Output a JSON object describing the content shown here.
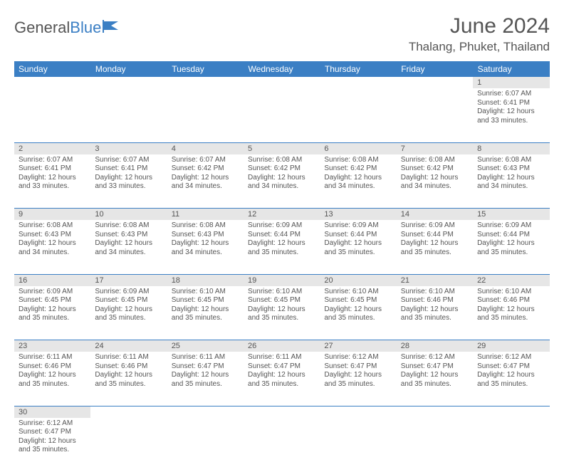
{
  "logo": {
    "text_general": "General",
    "text_blue": "Blue"
  },
  "title": "June 2024",
  "location": "Thalang, Phuket, Thailand",
  "colors": {
    "header_bg": "#3b7fc4",
    "header_text": "#ffffff",
    "daynum_bg": "#e6e6e6",
    "text": "#555555",
    "rule": "#3b7fc4"
  },
  "days_of_week": [
    "Sunday",
    "Monday",
    "Tuesday",
    "Wednesday",
    "Thursday",
    "Friday",
    "Saturday"
  ],
  "weeks": [
    [
      null,
      null,
      null,
      null,
      null,
      null,
      {
        "n": "1",
        "sr": "Sunrise: 6:07 AM",
        "ss": "Sunset: 6:41 PM",
        "dl": "Daylight: 12 hours and 33 minutes."
      }
    ],
    [
      {
        "n": "2",
        "sr": "Sunrise: 6:07 AM",
        "ss": "Sunset: 6:41 PM",
        "dl": "Daylight: 12 hours and 33 minutes."
      },
      {
        "n": "3",
        "sr": "Sunrise: 6:07 AM",
        "ss": "Sunset: 6:41 PM",
        "dl": "Daylight: 12 hours and 33 minutes."
      },
      {
        "n": "4",
        "sr": "Sunrise: 6:07 AM",
        "ss": "Sunset: 6:42 PM",
        "dl": "Daylight: 12 hours and 34 minutes."
      },
      {
        "n": "5",
        "sr": "Sunrise: 6:08 AM",
        "ss": "Sunset: 6:42 PM",
        "dl": "Daylight: 12 hours and 34 minutes."
      },
      {
        "n": "6",
        "sr": "Sunrise: 6:08 AM",
        "ss": "Sunset: 6:42 PM",
        "dl": "Daylight: 12 hours and 34 minutes."
      },
      {
        "n": "7",
        "sr": "Sunrise: 6:08 AM",
        "ss": "Sunset: 6:42 PM",
        "dl": "Daylight: 12 hours and 34 minutes."
      },
      {
        "n": "8",
        "sr": "Sunrise: 6:08 AM",
        "ss": "Sunset: 6:43 PM",
        "dl": "Daylight: 12 hours and 34 minutes."
      }
    ],
    [
      {
        "n": "9",
        "sr": "Sunrise: 6:08 AM",
        "ss": "Sunset: 6:43 PM",
        "dl": "Daylight: 12 hours and 34 minutes."
      },
      {
        "n": "10",
        "sr": "Sunrise: 6:08 AM",
        "ss": "Sunset: 6:43 PM",
        "dl": "Daylight: 12 hours and 34 minutes."
      },
      {
        "n": "11",
        "sr": "Sunrise: 6:08 AM",
        "ss": "Sunset: 6:43 PM",
        "dl": "Daylight: 12 hours and 34 minutes."
      },
      {
        "n": "12",
        "sr": "Sunrise: 6:09 AM",
        "ss": "Sunset: 6:44 PM",
        "dl": "Daylight: 12 hours and 35 minutes."
      },
      {
        "n": "13",
        "sr": "Sunrise: 6:09 AM",
        "ss": "Sunset: 6:44 PM",
        "dl": "Daylight: 12 hours and 35 minutes."
      },
      {
        "n": "14",
        "sr": "Sunrise: 6:09 AM",
        "ss": "Sunset: 6:44 PM",
        "dl": "Daylight: 12 hours and 35 minutes."
      },
      {
        "n": "15",
        "sr": "Sunrise: 6:09 AM",
        "ss": "Sunset: 6:44 PM",
        "dl": "Daylight: 12 hours and 35 minutes."
      }
    ],
    [
      {
        "n": "16",
        "sr": "Sunrise: 6:09 AM",
        "ss": "Sunset: 6:45 PM",
        "dl": "Daylight: 12 hours and 35 minutes."
      },
      {
        "n": "17",
        "sr": "Sunrise: 6:09 AM",
        "ss": "Sunset: 6:45 PM",
        "dl": "Daylight: 12 hours and 35 minutes."
      },
      {
        "n": "18",
        "sr": "Sunrise: 6:10 AM",
        "ss": "Sunset: 6:45 PM",
        "dl": "Daylight: 12 hours and 35 minutes."
      },
      {
        "n": "19",
        "sr": "Sunrise: 6:10 AM",
        "ss": "Sunset: 6:45 PM",
        "dl": "Daylight: 12 hours and 35 minutes."
      },
      {
        "n": "20",
        "sr": "Sunrise: 6:10 AM",
        "ss": "Sunset: 6:45 PM",
        "dl": "Daylight: 12 hours and 35 minutes."
      },
      {
        "n": "21",
        "sr": "Sunrise: 6:10 AM",
        "ss": "Sunset: 6:46 PM",
        "dl": "Daylight: 12 hours and 35 minutes."
      },
      {
        "n": "22",
        "sr": "Sunrise: 6:10 AM",
        "ss": "Sunset: 6:46 PM",
        "dl": "Daylight: 12 hours and 35 minutes."
      }
    ],
    [
      {
        "n": "23",
        "sr": "Sunrise: 6:11 AM",
        "ss": "Sunset: 6:46 PM",
        "dl": "Daylight: 12 hours and 35 minutes."
      },
      {
        "n": "24",
        "sr": "Sunrise: 6:11 AM",
        "ss": "Sunset: 6:46 PM",
        "dl": "Daylight: 12 hours and 35 minutes."
      },
      {
        "n": "25",
        "sr": "Sunrise: 6:11 AM",
        "ss": "Sunset: 6:47 PM",
        "dl": "Daylight: 12 hours and 35 minutes."
      },
      {
        "n": "26",
        "sr": "Sunrise: 6:11 AM",
        "ss": "Sunset: 6:47 PM",
        "dl": "Daylight: 12 hours and 35 minutes."
      },
      {
        "n": "27",
        "sr": "Sunrise: 6:12 AM",
        "ss": "Sunset: 6:47 PM",
        "dl": "Daylight: 12 hours and 35 minutes."
      },
      {
        "n": "28",
        "sr": "Sunrise: 6:12 AM",
        "ss": "Sunset: 6:47 PM",
        "dl": "Daylight: 12 hours and 35 minutes."
      },
      {
        "n": "29",
        "sr": "Sunrise: 6:12 AM",
        "ss": "Sunset: 6:47 PM",
        "dl": "Daylight: 12 hours and 35 minutes."
      }
    ],
    [
      {
        "n": "30",
        "sr": "Sunrise: 6:12 AM",
        "ss": "Sunset: 6:47 PM",
        "dl": "Daylight: 12 hours and 35 minutes."
      },
      null,
      null,
      null,
      null,
      null,
      null
    ]
  ]
}
